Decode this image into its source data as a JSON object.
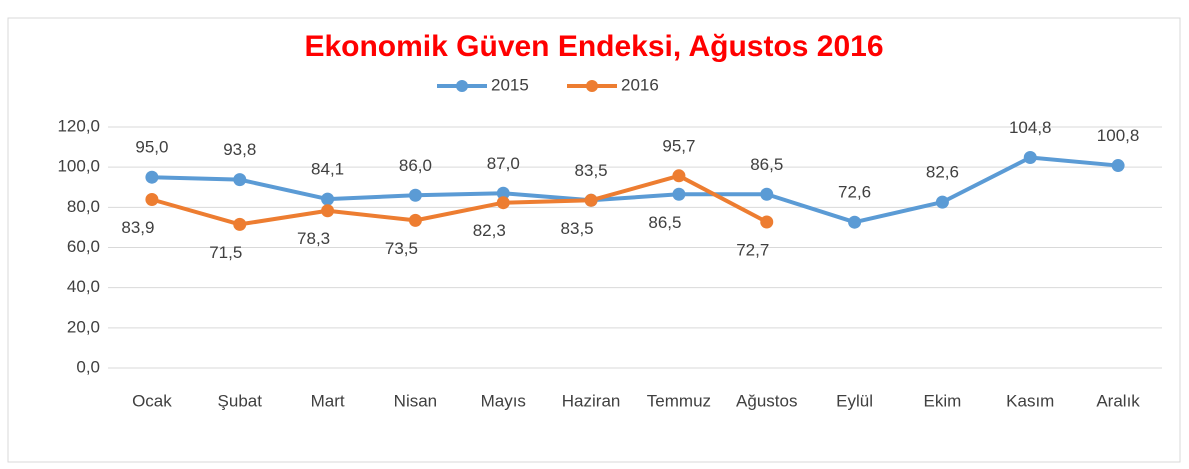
{
  "chart_data": {
    "type": "line",
    "title": "Ekonomik Güven Endeksi, Ağustos 2016",
    "categories": [
      "Ocak",
      "Şubat",
      "Mart",
      "Nisan",
      "Mayıs",
      "Haziran",
      "Temmuz",
      "Ağustos",
      "Eylül",
      "Ekim",
      "Kasım",
      "Aralık"
    ],
    "series": [
      {
        "name": "2015",
        "color": "#5b9bd5",
        "values": [
          95.0,
          93.8,
          84.1,
          86.0,
          87.0,
          83.5,
          86.5,
          86.5,
          72.6,
          82.6,
          104.8,
          100.8
        ],
        "value_labels": [
          "95,0",
          "93,8",
          "84,1",
          "86,0",
          "87,0",
          "83,5",
          "86,5",
          "86,5",
          "72,6",
          "82,6",
          "104,8",
          "100,8"
        ]
      },
      {
        "name": "2016",
        "color": "#ed7d31",
        "values": [
          83.9,
          71.5,
          78.3,
          73.5,
          82.3,
          83.5,
          95.7,
          72.7,
          null,
          null,
          null,
          null
        ],
        "value_labels": [
          "83,9",
          "71,5",
          "78,3",
          "73,5",
          "82,3",
          "83,5",
          "95,7",
          "72,7",
          null,
          null,
          null,
          null
        ]
      }
    ],
    "ylim": [
      0,
      120
    ],
    "yticks": [
      {
        "value": 0,
        "label": "0,0"
      },
      {
        "value": 20,
        "label": "20,0"
      },
      {
        "value": 40,
        "label": "40,0"
      },
      {
        "value": 60,
        "label": "60,0"
      },
      {
        "value": 80,
        "label": "80,0"
      },
      {
        "value": 100,
        "label": "100,0"
      },
      {
        "value": 120,
        "label": "120,0"
      }
    ],
    "grid": true,
    "legend": "top"
  }
}
